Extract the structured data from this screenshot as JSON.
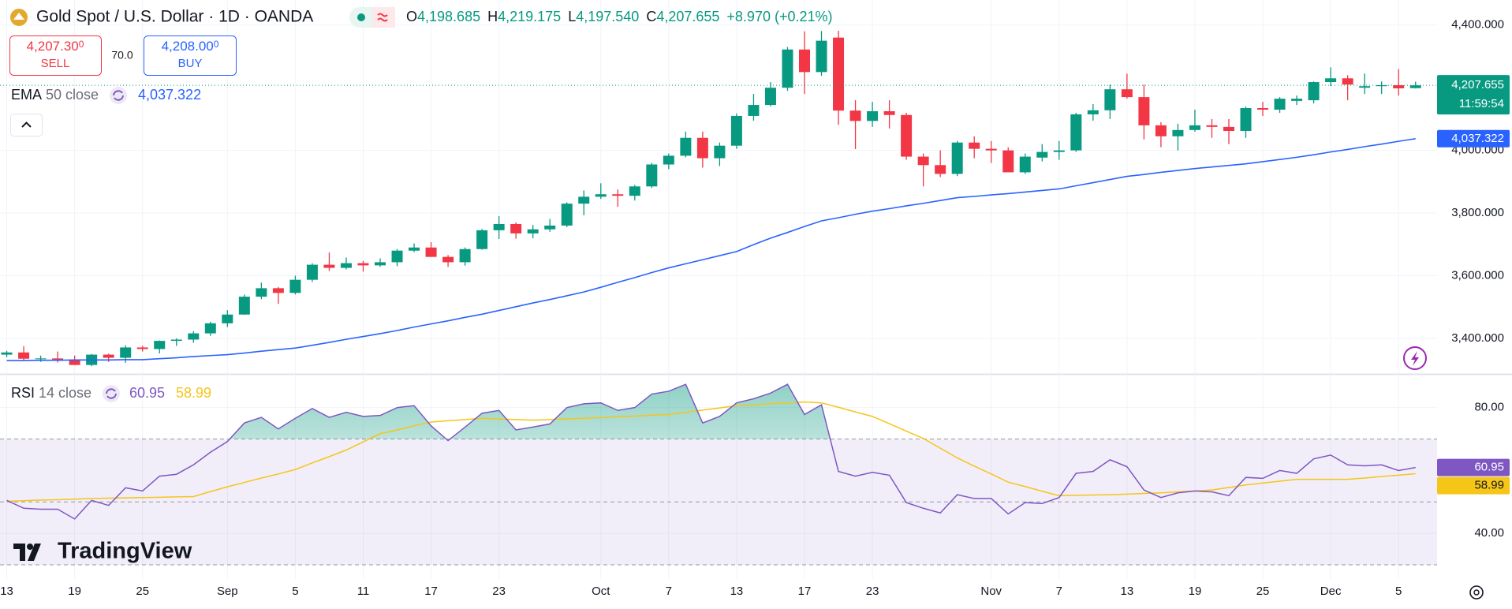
{
  "header": {
    "symbol": "Gold Spot / U.S. Dollar · 1D · OANDA",
    "ohlc": [
      {
        "label": "O",
        "value": "4,198.685"
      },
      {
        "label": "H",
        "value": "4,219.175"
      },
      {
        "label": "L",
        "value": "4,197.540"
      },
      {
        "label": "C",
        "value": "4,207.655"
      }
    ],
    "change": "+8.970 (+0.21%)"
  },
  "trade": {
    "sell_price": "4,207.30",
    "sell_price_small": "0",
    "sell_label": "SELL",
    "spread": "70.0",
    "buy_price": "4,208.00",
    "buy_price_small": "0",
    "buy_label": "BUY"
  },
  "logo": "TradingView",
  "chart_data": [
    {
      "type": "candlestick",
      "categories": [
        "13",
        null,
        null,
        null,
        "19",
        null,
        null,
        null,
        "25",
        null,
        null,
        null,
        null,
        "Sep",
        null,
        null,
        null,
        "5",
        null,
        null,
        null,
        "11",
        null,
        null,
        null,
        "17",
        null,
        null,
        null,
        "23",
        null,
        null,
        null,
        null,
        null,
        "Oct",
        null,
        null,
        null,
        "7",
        null,
        null,
        null,
        "13",
        null,
        null,
        null,
        "17",
        null,
        null,
        null,
        "23",
        null,
        null,
        null,
        null,
        null,
        null,
        "Nov",
        null,
        null,
        null,
        "7",
        null,
        null,
        null,
        "13",
        null,
        null,
        null,
        "19",
        null,
        null,
        null,
        "25",
        null,
        null,
        null,
        "Dec",
        null,
        null,
        null,
        "5",
        null
      ],
      "open": [
        3348,
        3355,
        3335,
        3336,
        3332,
        3315,
        3348,
        3338,
        3371,
        3366,
        3392,
        3396,
        3416,
        3448,
        3476,
        3533,
        3560,
        3545,
        3587,
        3635,
        3625,
        3640,
        3633,
        3643,
        3680,
        3690,
        3660,
        3643,
        3685,
        3745,
        3765,
        3735,
        3748,
        3760,
        3830,
        3852,
        3860,
        3855,
        3885,
        3955,
        3983,
        4040,
        3975,
        4015,
        4110,
        4145,
        4200,
        4322,
        4250,
        4360,
        4127,
        4094,
        4125,
        4113,
        3980,
        3953,
        3925,
        4025,
        4005,
        4000,
        3930,
        3977,
        3995,
        4000,
        4115,
        4128,
        4195,
        4170,
        4080,
        4045,
        4065,
        4080,
        4075,
        4062,
        4135,
        4130,
        4158,
        4160,
        4218,
        4230,
        4200,
        4205,
        4208,
        4198.685
      ],
      "high": [
        3360,
        3375,
        3345,
        3358,
        3345,
        3350,
        3351,
        3378,
        3376,
        3393,
        3400,
        3423,
        3453,
        3490,
        3540,
        3578,
        3564,
        3600,
        3640,
        3674,
        3658,
        3647,
        3655,
        3685,
        3703,
        3707,
        3666,
        3690,
        3749,
        3790,
        3770,
        3762,
        3781,
        3834,
        3872,
        3895,
        3875,
        3890,
        3960,
        3990,
        4060,
        4060,
        4025,
        4118,
        4180,
        4218,
        4330,
        4380,
        4381,
        4382,
        4160,
        4155,
        4160,
        4120,
        3990,
        4000,
        4030,
        4045,
        4030,
        4010,
        3990,
        4020,
        4030,
        4120,
        4148,
        4210,
        4245,
        4210,
        4090,
        4085,
        4130,
        4100,
        4100,
        4140,
        4155,
        4170,
        4175,
        4220,
        4265,
        4240,
        4245,
        4220,
        4260,
        4219.175
      ],
      "low": [
        3340,
        3330,
        3325,
        3323,
        3315,
        3311,
        3325,
        3322,
        3358,
        3352,
        3376,
        3386,
        3408,
        3436,
        3475,
        3525,
        3510,
        3540,
        3580,
        3615,
        3620,
        3613,
        3628,
        3630,
        3675,
        3660,
        3628,
        3632,
        3683,
        3717,
        3718,
        3720,
        3740,
        3755,
        3793,
        3845,
        3820,
        3840,
        3880,
        3940,
        3978,
        3945,
        3950,
        4005,
        4095,
        4140,
        4190,
        4180,
        4238,
        4082,
        4004,
        4075,
        4070,
        3970,
        3885,
        3915,
        3918,
        3975,
        3960,
        3930,
        3925,
        3965,
        3970,
        3995,
        4095,
        4100,
        4165,
        4035,
        4010,
        4000,
        4060,
        4040,
        4020,
        4040,
        4110,
        4120,
        4145,
        4150,
        4205,
        4160,
        4180,
        4180,
        4175,
        4197.54
      ],
      "close": [
        3355,
        3335,
        3336,
        3332,
        3315,
        3348,
        3338,
        3371,
        3366,
        3392,
        3396,
        3416,
        3448,
        3476,
        3533,
        3560,
        3545,
        3587,
        3635,
        3625,
        3640,
        3633,
        3643,
        3680,
        3690,
        3660,
        3643,
        3685,
        3745,
        3765,
        3735,
        3748,
        3760,
        3830,
        3852,
        3860,
        3855,
        3885,
        3955,
        3983,
        4040,
        3975,
        4015,
        4110,
        4145,
        4200,
        4322,
        4250,
        4350,
        4127,
        4094,
        4125,
        4113,
        3980,
        3953,
        3925,
        4025,
        4005,
        4000,
        3930,
        3980,
        3995,
        4000,
        4115,
        4128,
        4195,
        4170,
        4080,
        4045,
        4065,
        4080,
        4075,
        4062,
        4135,
        4130,
        4165,
        4165,
        4218,
        4230,
        4210,
        4205,
        4208,
        4198,
        4207.655
      ],
      "up_color": "#089981",
      "down_color": "#f23645",
      "ylim": [
        3289,
        4480
      ],
      "yticks": [
        {
          "value": 4400,
          "label": "4,400.000"
        },
        {
          "value": 4000,
          "label": "4,000.000"
        },
        {
          "value": 3800,
          "label": "3,800.000"
        },
        {
          "value": 3600,
          "label": "3,600.000"
        },
        {
          "value": 3400,
          "label": "3,400.000"
        }
      ],
      "grid": true,
      "last_price_label": "4,207.655",
      "countdown": "11:59:54",
      "series": [
        {
          "name": "EMA",
          "params": "50 close",
          "color": "#2962ff",
          "last_label": "4,037.322",
          "values": [
            3329,
            3329,
            3330,
            3330,
            3331,
            3331,
            3331,
            3332,
            3332,
            3335,
            3338,
            3342,
            3345,
            3348,
            3353,
            3359,
            3364,
            3369,
            3378,
            3387,
            3397,
            3406,
            3415,
            3425,
            3436,
            3446,
            3456,
            3467,
            3477,
            3489,
            3501,
            3513,
            3524,
            3536,
            3548,
            3563,
            3579,
            3594,
            3610,
            3625,
            3638,
            3651,
            3664,
            3677,
            3699,
            3720,
            3738,
            3757,
            3775,
            3785,
            3796,
            3806,
            3814,
            3823,
            3831,
            3840,
            3849,
            3853,
            3858,
            3862,
            3867,
            3872,
            3877,
            3887,
            3897,
            3907,
            3917,
            3923,
            3930,
            3936,
            3942,
            3947,
            3952,
            3957,
            3964,
            3971,
            3978,
            3986,
            3995,
            4003,
            4012,
            4020,
            4029,
            4037.322
          ]
        }
      ]
    },
    {
      "type": "line",
      "name": "RSI",
      "params": "14 close",
      "ylim": [
        25.5,
        90.2
      ],
      "yticks": [
        {
          "value": 80,
          "label": "80.00"
        },
        {
          "value": 40,
          "label": "40.00"
        }
      ],
      "bands": [
        70,
        50,
        30
      ],
      "band_color": "#7e57c2",
      "series": [
        {
          "color": "#7e57c2",
          "last_label": "60.95",
          "values": [
            50.5,
            48.0,
            47.7,
            47.7,
            44.6,
            50.5,
            48.9,
            54.5,
            53.5,
            58.2,
            58.8,
            61.8,
            65.8,
            69.2,
            75.1,
            76.9,
            73.2,
            76.6,
            79.7,
            76.9,
            78.5,
            77.2,
            77.5,
            80.0,
            80.6,
            74.2,
            69.5,
            73.8,
            78.2,
            79.1,
            72.9,
            73.8,
            74.8,
            80.0,
            81.2,
            81.5,
            79.1,
            80.0,
            84.3,
            85.2,
            87.4,
            75.1,
            77.2,
            81.5,
            82.8,
            84.6,
            87.4,
            77.8,
            80.9,
            59.7,
            58.2,
            59.4,
            58.5,
            49.8,
            48.0,
            46.5,
            52.3,
            51.1,
            51.1,
            46.2,
            49.8,
            49.5,
            51.4,
            59.1,
            59.7,
            63.4,
            61.2,
            53.8,
            51.4,
            52.9,
            53.5,
            53.2,
            52.0,
            57.8,
            57.5,
            60.0,
            59.1,
            63.7,
            64.9,
            61.8,
            61.5,
            61.8,
            60.0,
            60.95
          ]
        },
        {
          "color": "#f5c518",
          "last_label": "58.99",
          "values": [
            50.2,
            50.4,
            50.6,
            50.7,
            50.9,
            51.1,
            51.2,
            51.3,
            51.4,
            51.5,
            51.6,
            51.7,
            53.3,
            54.8,
            56.2,
            57.6,
            58.9,
            60.3,
            62.4,
            64.4,
            66.5,
            69.1,
            71.7,
            72.9,
            74.2,
            75.4,
            75.8,
            76.2,
            76.6,
            76.4,
            76.2,
            76.0,
            76.2,
            76.4,
            76.6,
            76.8,
            77.1,
            77.3,
            77.6,
            77.8,
            78.5,
            79.2,
            79.9,
            80.6,
            80.9,
            81.2,
            81.5,
            81.8,
            81.5,
            80.1,
            78.6,
            77.2,
            74.9,
            72.5,
            70.2,
            67.1,
            64.0,
            61.4,
            58.9,
            56.3,
            54.9,
            53.4,
            52.0,
            52.1,
            52.2,
            52.3,
            52.5,
            52.7,
            52.9,
            53.2,
            53.5,
            53.8,
            54.6,
            55.4,
            56.0,
            56.6,
            57.2,
            57.2,
            57.2,
            57.2,
            57.6,
            58.1,
            58.5,
            58.99
          ]
        }
      ]
    }
  ]
}
